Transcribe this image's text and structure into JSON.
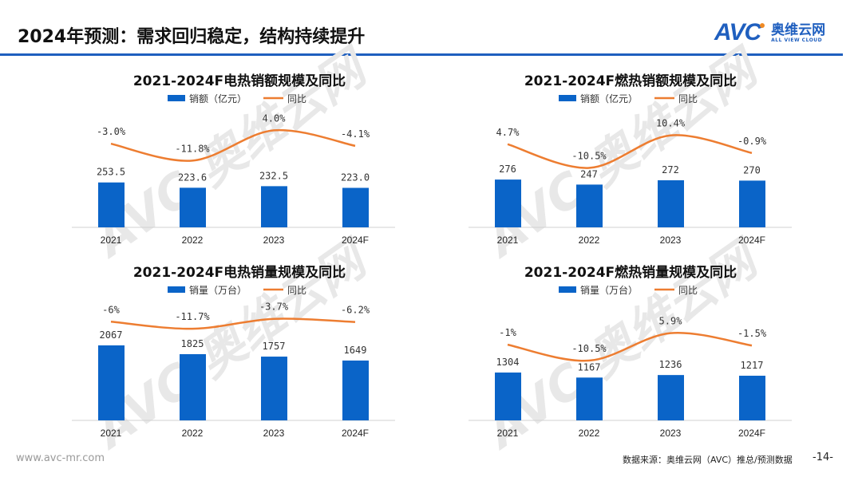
{
  "header": {
    "title": "2024年预测：需求回归稳定，结构持续提升"
  },
  "logo": {
    "mark": "AVC",
    "cn": "奥维云网",
    "en": "ALL VIEW CLOUD"
  },
  "footer": {
    "url": "www.avc-mr.com",
    "source": "数据来源：奥维云网（AVC）推总/预测数据",
    "page": "-14-"
  },
  "colors": {
    "bar": "#0a64c8",
    "line": "#ed7d31",
    "accent": "#1f5fbf"
  },
  "chart_data": [
    {
      "type": "bar",
      "title": "2021-2024F电热销额规模及同比",
      "categories": [
        "2021",
        "2022",
        "2023",
        "2024F"
      ],
      "series": [
        {
          "name": "销额（亿元）",
          "type": "bar",
          "values": [
            253.5,
            223.6,
            232.5,
            223.0
          ],
          "labels": [
            "253.5",
            "223.6",
            "232.5",
            "223.0"
          ]
        },
        {
          "name": "同比",
          "type": "line",
          "values": [
            -3.0,
            -11.8,
            4.0,
            -4.1
          ],
          "labels": [
            "-3.0%",
            "-11.8%",
            "4.0%",
            "-4.1%"
          ]
        }
      ]
    },
    {
      "type": "bar",
      "title": "2021-2024F燃热销额规模及同比",
      "categories": [
        "2021",
        "2022",
        "2023",
        "2024F"
      ],
      "series": [
        {
          "name": "销额（亿元）",
          "type": "bar",
          "values": [
            276,
            247,
            272,
            270
          ],
          "labels": [
            "276",
            "247",
            "272",
            "270"
          ]
        },
        {
          "name": "同比",
          "type": "line",
          "values": [
            4.7,
            -10.5,
            10.4,
            -0.9
          ],
          "labels": [
            "4.7%",
            "-10.5%",
            "10.4%",
            "-0.9%"
          ]
        }
      ]
    },
    {
      "type": "bar",
      "title": "2021-2024F电热销量规模及同比",
      "categories": [
        "2021",
        "2022",
        "2023",
        "2024F"
      ],
      "series": [
        {
          "name": "销量（万台）",
          "type": "bar",
          "values": [
            2067,
            1825,
            1757,
            1649
          ],
          "labels": [
            "2067",
            "1825",
            "1757",
            "1649"
          ]
        },
        {
          "name": "同比",
          "type": "line",
          "values": [
            -6,
            -11.7,
            -3.7,
            -6.2
          ],
          "labels": [
            "-6%",
            "-11.7%",
            "-3.7%",
            "-6.2%"
          ]
        }
      ]
    },
    {
      "type": "bar",
      "title": "2021-2024F燃热销量规模及同比",
      "categories": [
        "2021",
        "2022",
        "2023",
        "2024F"
      ],
      "series": [
        {
          "name": "销量（万台）",
          "type": "bar",
          "values": [
            1304,
            1167,
            1236,
            1217
          ],
          "labels": [
            "1304",
            "1167",
            "1236",
            "1217"
          ]
        },
        {
          "name": "同比",
          "type": "line",
          "values": [
            -1,
            -10.5,
            5.9,
            -1.5
          ],
          "labels": [
            "-1%",
            "-10.5%",
            "5.9%",
            "-1.5%"
          ]
        }
      ]
    }
  ]
}
